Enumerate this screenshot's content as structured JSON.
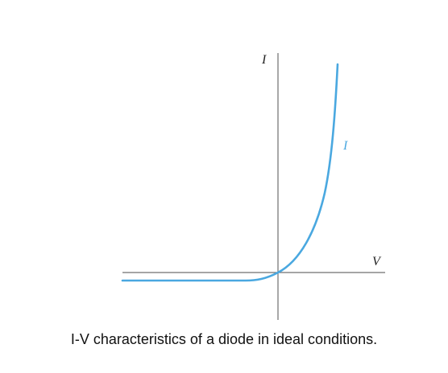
{
  "diagram": {
    "axes": {
      "vertical_label": "I",
      "horizontal_label": "V"
    },
    "curve": {
      "label": "I",
      "color": "#4aa8e0"
    }
  },
  "caption": "I-V characteristics of a diode in ideal conditions."
}
